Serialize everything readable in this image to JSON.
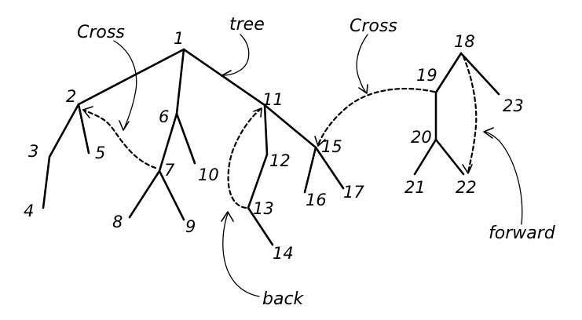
{
  "nodes": [
    "1",
    "2",
    "3",
    "4",
    "5",
    "6",
    "7",
    "8",
    "9",
    "10",
    "11",
    "12",
    "13",
    "14",
    "15",
    "16",
    "17",
    "18",
    "19",
    "20",
    "21",
    "22",
    "23"
  ],
  "edge_labels": {
    "tree": "tree",
    "cross_left": "Cross",
    "cross_right": "Cross",
    "back": "back",
    "forward": "forward"
  }
}
